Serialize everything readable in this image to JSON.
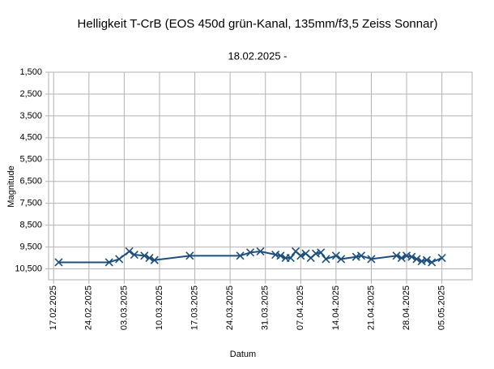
{
  "chart_data": {
    "type": "line",
    "title": "Helligkeit T-CrB (EOS 450d grün-Kanal, 135mm/f3,5 Zeiss Sonnar)",
    "subtitle": "18.02.2025 -",
    "x_label": "Datum",
    "y_label": "Magnitude",
    "y_inverted": true,
    "grid": true,
    "xlim": [
      "2025-02-16",
      "2025-05-11"
    ],
    "ylim": [
      1.5,
      11.0
    ],
    "yticks": [
      {
        "value": 1.5,
        "label": "1,500"
      },
      {
        "value": 2.5,
        "label": "2,500"
      },
      {
        "value": 3.5,
        "label": "3,500"
      },
      {
        "value": 4.5,
        "label": "4,500"
      },
      {
        "value": 5.5,
        "label": "5,500"
      },
      {
        "value": 6.5,
        "label": "6,500"
      },
      {
        "value": 7.5,
        "label": "7,500"
      },
      {
        "value": 8.5,
        "label": "8,500"
      },
      {
        "value": 9.5,
        "label": "9,500"
      },
      {
        "value": 10.5,
        "label": "10,500"
      }
    ],
    "xticks": [
      {
        "value": "2025-02-17",
        "label": "17.02.2025"
      },
      {
        "value": "2025-02-24",
        "label": "24.02.2025"
      },
      {
        "value": "2025-03-03",
        "label": "03.03.2025"
      },
      {
        "value": "2025-03-10",
        "label": "10.03.2025"
      },
      {
        "value": "2025-03-17",
        "label": "17.03.2025"
      },
      {
        "value": "2025-03-24",
        "label": "24.03.2025"
      },
      {
        "value": "2025-03-31",
        "label": "31.03.2025"
      },
      {
        "value": "2025-04-07",
        "label": "07.04.2025"
      },
      {
        "value": "2025-04-14",
        "label": "14.04.2025"
      },
      {
        "value": "2025-04-21",
        "label": "21.04.2025"
      },
      {
        "value": "2025-04-28",
        "label": "28.04.2025"
      },
      {
        "value": "2025-05-05",
        "label": "05.05.2025"
      }
    ],
    "x": [
      "2025-02-18",
      "2025-02-28",
      "2025-03-02",
      "2025-03-04",
      "2025-03-05",
      "2025-03-07",
      "2025-03-08",
      "2025-03-09",
      "2025-03-16",
      "2025-03-26",
      "2025-03-28",
      "2025-03-30",
      "2025-04-02",
      "2025-04-03",
      "2025-04-04",
      "2025-04-05",
      "2025-04-06",
      "2025-04-07",
      "2025-04-08",
      "2025-04-09",
      "2025-04-10",
      "2025-04-11",
      "2025-04-12",
      "2025-04-14",
      "2025-04-15",
      "2025-04-18",
      "2025-04-19",
      "2025-04-21",
      "2025-04-26",
      "2025-04-27",
      "2025-04-28",
      "2025-04-29",
      "2025-04-30",
      "2025-05-01",
      "2025-05-02",
      "2025-05-03",
      "2025-05-05"
    ],
    "series": [
      {
        "name": "Magnitude",
        "color": "#1c4f7c",
        "values": [
          10.2,
          10.2,
          10.05,
          9.7,
          9.85,
          9.9,
          10.0,
          10.1,
          9.9,
          9.9,
          9.75,
          9.7,
          9.85,
          9.9,
          10.0,
          10.0,
          9.7,
          9.9,
          9.8,
          10.0,
          9.8,
          9.75,
          10.05,
          9.9,
          10.05,
          9.95,
          9.9,
          10.05,
          9.9,
          10.0,
          9.9,
          9.95,
          10.05,
          10.15,
          10.1,
          10.2,
          10.0
        ]
      }
    ]
  }
}
